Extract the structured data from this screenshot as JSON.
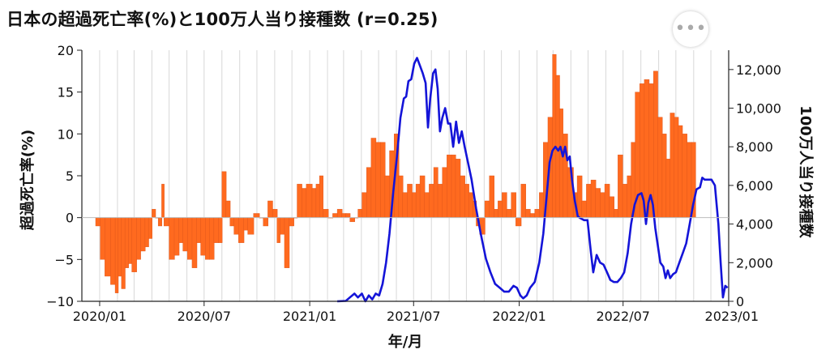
{
  "title": "日本の超過死亡率(%)と100万人当り接種数 (r=0.25)",
  "more_button": {
    "icon": "more-dots-icon",
    "glyph": "•••"
  },
  "chart_data": {
    "type": "bar+line",
    "title": "日本の超過死亡率(%)と100万人当り接種数 (r=0.25)",
    "xlabel": "年/月",
    "ylabel_left": "超過死亡率(%)",
    "ylabel_right": "100万人当り接種数",
    "x_ticks": [
      "2020/01",
      "2020/07",
      "2021/01",
      "2021/07",
      "2022/01",
      "2022/07",
      "2023/01"
    ],
    "x_range": [
      "2019/12",
      "2023/01"
    ],
    "ylim_left": [
      -10,
      20
    ],
    "yticks_left": [
      "−10",
      "−5",
      "0",
      "5",
      "10",
      "15",
      "20"
    ],
    "ylim_right": [
      0,
      13000
    ],
    "yticks_right": [
      "0",
      "2,000",
      "4,000",
      "6,000",
      "8,000",
      "10,000",
      "12,000"
    ],
    "grid": "vertical",
    "colors": {
      "excess": "#ff6a1f",
      "excess_stroke": "#d9531a",
      "vaccination": "#1414d8"
    },
    "series": [
      {
        "axis": "left",
        "kind": "bar",
        "points": [
          [
            "2019/12/25",
            -1
          ],
          [
            "2020/01/02",
            -5
          ],
          [
            "2020/01/10",
            -7
          ],
          [
            "2020/01/20",
            -8
          ],
          [
            "2020/01/28",
            -9
          ],
          [
            "2020/02/02",
            -7
          ],
          [
            "2020/02/08",
            -8.5
          ],
          [
            "2020/02/14",
            -6
          ],
          [
            "2020/02/20",
            -5.5
          ],
          [
            "2020/02/26",
            -6.5
          ],
          [
            "2020/03/05",
            -5
          ],
          [
            "2020/03/12",
            -4
          ],
          [
            "2020/03/20",
            -3.5
          ],
          [
            "2020/03/26",
            -2.5
          ],
          [
            "2020/04/01",
            1
          ],
          [
            "2020/04/07",
            0
          ],
          [
            "2020/04/12",
            -1
          ],
          [
            "2020/04/18",
            4
          ],
          [
            "2020/04/22",
            -1
          ],
          [
            "2020/05/01",
            -5
          ],
          [
            "2020/05/10",
            -4.5
          ],
          [
            "2020/05/18",
            -3
          ],
          [
            "2020/05/25",
            -4
          ],
          [
            "2020/06/02",
            -5
          ],
          [
            "2020/06/10",
            -6
          ],
          [
            "2020/06/18",
            -3
          ],
          [
            "2020/06/25",
            -4.5
          ],
          [
            "2020/07/03",
            -5
          ],
          [
            "2020/07/10",
            -5
          ],
          [
            "2020/07/18",
            -3
          ],
          [
            "2020/07/26",
            -3
          ],
          [
            "2020/08/01",
            5.5
          ],
          [
            "2020/08/08",
            2
          ],
          [
            "2020/08/15",
            -1
          ],
          [
            "2020/08/22",
            -2
          ],
          [
            "2020/08/30",
            -3
          ],
          [
            "2020/09/08",
            -1.5
          ],
          [
            "2020/09/15",
            -2
          ],
          [
            "2020/09/25",
            0.5
          ],
          [
            "2020/10/05",
            0
          ],
          [
            "2020/10/12",
            -1
          ],
          [
            "2020/10/20",
            2
          ],
          [
            "2020/10/28",
            1
          ],
          [
            "2020/11/05",
            -3
          ],
          [
            "2020/11/10",
            -2
          ],
          [
            "2020/11/18",
            -6
          ],
          [
            "2020/11/26",
            -1
          ],
          [
            "2020/12/04",
            0
          ],
          [
            "2020/12/10",
            4
          ],
          [
            "2020/12/18",
            3.5
          ],
          [
            "2020/12/26",
            4
          ],
          [
            "2021/01/05",
            3.5
          ],
          [
            "2021/01/12",
            4
          ],
          [
            "2021/01/18",
            5
          ],
          [
            "2021/01/24",
            1
          ],
          [
            "2021/02/02",
            0
          ],
          [
            "2021/02/10",
            0.5
          ],
          [
            "2021/02/18",
            1
          ],
          [
            "2021/02/26",
            0.5
          ],
          [
            "2021/03/05",
            0.5
          ],
          [
            "2021/03/12",
            -0.5
          ],
          [
            "2021/03/20",
            0
          ],
          [
            "2021/03/26",
            1
          ],
          [
            "2021/04/02",
            3
          ],
          [
            "2021/04/10",
            6
          ],
          [
            "2021/04/18",
            9.5
          ],
          [
            "2021/04/26",
            9
          ],
          [
            "2021/05/04",
            9
          ],
          [
            "2021/05/12",
            5
          ],
          [
            "2021/05/20",
            8
          ],
          [
            "2021/05/28",
            10
          ],
          [
            "2021/06/05",
            5
          ],
          [
            "2021/06/12",
            3
          ],
          [
            "2021/06/20",
            4
          ],
          [
            "2021/06/28",
            3
          ],
          [
            "2021/07/05",
            4
          ],
          [
            "2021/07/12",
            5
          ],
          [
            "2021/07/20",
            3
          ],
          [
            "2021/07/28",
            4
          ],
          [
            "2021/08/05",
            6
          ],
          [
            "2021/08/12",
            4
          ],
          [
            "2021/08/20",
            6
          ],
          [
            "2021/08/28",
            7.5
          ],
          [
            "2021/09/05",
            7.5
          ],
          [
            "2021/09/12",
            7
          ],
          [
            "2021/09/20",
            5
          ],
          [
            "2021/09/28",
            4
          ],
          [
            "2021/10/05",
            3
          ],
          [
            "2021/10/12",
            2
          ],
          [
            "2021/10/18",
            -1
          ],
          [
            "2021/10/24",
            -2
          ],
          [
            "2021/11/02",
            2
          ],
          [
            "2021/11/10",
            5
          ],
          [
            "2021/11/18",
            1
          ],
          [
            "2021/11/25",
            2
          ],
          [
            "2021/12/02",
            3
          ],
          [
            "2021/12/10",
            1
          ],
          [
            "2021/12/18",
            3
          ],
          [
            "2021/12/26",
            -1
          ],
          [
            "2022/01/04",
            4
          ],
          [
            "2022/01/12",
            1
          ],
          [
            "2022/01/20",
            0.5
          ],
          [
            "2022/01/28",
            1
          ],
          [
            "2022/02/05",
            3
          ],
          [
            "2022/02/12",
            9
          ],
          [
            "2022/02/20",
            12
          ],
          [
            "2022/02/28",
            19.5
          ],
          [
            "2022/03/06",
            17
          ],
          [
            "2022/03/12",
            13
          ],
          [
            "2022/03/18",
            10
          ],
          [
            "2022/03/26",
            6
          ],
          [
            "2022/04/05",
            3
          ],
          [
            "2022/04/12",
            5
          ],
          [
            "2022/04/20",
            2
          ],
          [
            "2022/04/28",
            4
          ],
          [
            "2022/05/06",
            4.5
          ],
          [
            "2022/05/14",
            3.5
          ],
          [
            "2022/05/22",
            3
          ],
          [
            "2022/05/30",
            4
          ],
          [
            "2022/06/07",
            2.5
          ],
          [
            "2022/06/15",
            1
          ],
          [
            "2022/06/22",
            7.5
          ],
          [
            "2022/06/30",
            4
          ],
          [
            "2022/07/08",
            5
          ],
          [
            "2022/07/15",
            9
          ],
          [
            "2022/07/22",
            15
          ],
          [
            "2022/07/30",
            16
          ],
          [
            "2022/08/07",
            16.5
          ],
          [
            "2022/08/15",
            16
          ],
          [
            "2022/08/23",
            17.5
          ],
          [
            "2022/08/30",
            12
          ],
          [
            "2022/09/07",
            10
          ],
          [
            "2022/09/14",
            7
          ],
          [
            "2022/09/21",
            12.5
          ],
          [
            "2022/09/28",
            12
          ],
          [
            "2022/10/05",
            11
          ],
          [
            "2022/10/12",
            10
          ],
          [
            "2022/10/20",
            9
          ],
          [
            "2022/10/28",
            9
          ]
        ]
      },
      {
        "axis": "right",
        "kind": "line",
        "points": [
          [
            "2021/02/18",
            0
          ],
          [
            "2021/03/05",
            20
          ],
          [
            "2021/03/12",
            200
          ],
          [
            "2021/03/20",
            400
          ],
          [
            "2021/03/26",
            200
          ],
          [
            "2021/04/02",
            400
          ],
          [
            "2021/04/08",
            0
          ],
          [
            "2021/04/14",
            300
          ],
          [
            "2021/04/20",
            100
          ],
          [
            "2021/04/26",
            400
          ],
          [
            "2021/05/02",
            300
          ],
          [
            "2021/05/08",
            900
          ],
          [
            "2021/05/14",
            2000
          ],
          [
            "2021/05/20",
            3500
          ],
          [
            "2021/05/26",
            5500
          ],
          [
            "2021/06/02",
            7500
          ],
          [
            "2021/06/08",
            9500
          ],
          [
            "2021/06/14",
            10500
          ],
          [
            "2021/06/18",
            10600
          ],
          [
            "2021/06/22",
            11400
          ],
          [
            "2021/06/27",
            11500
          ],
          [
            "2021/07/02",
            12300
          ],
          [
            "2021/07/07",
            12600
          ],
          [
            "2021/07/12",
            12200
          ],
          [
            "2021/07/17",
            11800
          ],
          [
            "2021/07/22",
            11300
          ],
          [
            "2021/07/26",
            9000
          ],
          [
            "2021/07/30",
            10500
          ],
          [
            "2021/08/04",
            11800
          ],
          [
            "2021/08/08",
            12000
          ],
          [
            "2021/08/12",
            11000
          ],
          [
            "2021/08/16",
            8800
          ],
          [
            "2021/08/20",
            9500
          ],
          [
            "2021/08/25",
            10000
          ],
          [
            "2021/08/30",
            9200
          ],
          [
            "2021/09/03",
            9200
          ],
          [
            "2021/09/08",
            8000
          ],
          [
            "2021/09/13",
            9300
          ],
          [
            "2021/09/18",
            8200
          ],
          [
            "2021/09/23",
            8800
          ],
          [
            "2021/09/28",
            8000
          ],
          [
            "2021/10/03",
            7300
          ],
          [
            "2021/10/10",
            6300
          ],
          [
            "2021/10/18",
            4800
          ],
          [
            "2021/10/26",
            3500
          ],
          [
            "2021/11/04",
            2200
          ],
          [
            "2021/11/12",
            1500
          ],
          [
            "2021/11/20",
            900
          ],
          [
            "2021/11/28",
            700
          ],
          [
            "2021/12/06",
            500
          ],
          [
            "2021/12/14",
            500
          ],
          [
            "2021/12/22",
            800
          ],
          [
            "2021/12/28",
            700
          ],
          [
            "2022/01/03",
            300
          ],
          [
            "2022/01/08",
            150
          ],
          [
            "2022/01/14",
            300
          ],
          [
            "2022/01/20",
            700
          ],
          [
            "2022/01/28",
            1000
          ],
          [
            "2022/02/05",
            2000
          ],
          [
            "2022/02/12",
            3500
          ],
          [
            "2022/02/18",
            5500
          ],
          [
            "2022/02/23",
            7200
          ],
          [
            "2022/02/28",
            7800
          ],
          [
            "2022/03/05",
            8000
          ],
          [
            "2022/03/10",
            7800
          ],
          [
            "2022/03/14",
            8000
          ],
          [
            "2022/03/18",
            7500
          ],
          [
            "2022/03/22",
            8000
          ],
          [
            "2022/03/26",
            7300
          ],
          [
            "2022/03/30",
            7500
          ],
          [
            "2022/04/03",
            6300
          ],
          [
            "2022/04/08",
            5200
          ],
          [
            "2022/04/13",
            4400
          ],
          [
            "2022/04/18",
            4300
          ],
          [
            "2022/04/24",
            4200
          ],
          [
            "2022/04/30",
            4200
          ],
          [
            "2022/05/06",
            2500
          ],
          [
            "2022/05/10",
            1500
          ],
          [
            "2022/05/16",
            2400
          ],
          [
            "2022/05/22",
            2000
          ],
          [
            "2022/05/28",
            1900
          ],
          [
            "2022/06/03",
            1500
          ],
          [
            "2022/06/09",
            1100
          ],
          [
            "2022/06/15",
            1000
          ],
          [
            "2022/06/21",
            1000
          ],
          [
            "2022/06/27",
            1200
          ],
          [
            "2022/07/03",
            1500
          ],
          [
            "2022/07/09",
            2500
          ],
          [
            "2022/07/15",
            4000
          ],
          [
            "2022/07/21",
            5000
          ],
          [
            "2022/07/27",
            5500
          ],
          [
            "2022/08/02",
            5600
          ],
          [
            "2022/08/06",
            5200
          ],
          [
            "2022/08/10",
            4000
          ],
          [
            "2022/08/14",
            5100
          ],
          [
            "2022/08/18",
            5500
          ],
          [
            "2022/08/22",
            5000
          ],
          [
            "2022/08/26",
            3800
          ],
          [
            "2022/08/30",
            3000
          ],
          [
            "2022/09/04",
            2000
          ],
          [
            "2022/09/09",
            1800
          ],
          [
            "2022/09/13",
            1200
          ],
          [
            "2022/09/17",
            1600
          ],
          [
            "2022/09/21",
            1200
          ],
          [
            "2022/09/26",
            1400
          ],
          [
            "2022/10/01",
            1500
          ],
          [
            "2022/10/07",
            2000
          ],
          [
            "2022/10/13",
            2500
          ],
          [
            "2022/10/19",
            3000
          ],
          [
            "2022/10/25",
            4000
          ],
          [
            "2022/10/31",
            5000
          ],
          [
            "2022/11/06",
            5800
          ],
          [
            "2022/11/12",
            5900
          ],
          [
            "2022/11/16",
            6400
          ],
          [
            "2022/11/20",
            6300
          ],
          [
            "2022/11/26",
            6300
          ],
          [
            "2022/12/02",
            6300
          ],
          [
            "2022/12/08",
            6000
          ],
          [
            "2022/12/14",
            4000
          ],
          [
            "2022/12/18",
            2000
          ],
          [
            "2022/12/22",
            200
          ],
          [
            "2022/12/26",
            800
          ],
          [
            "2022/12/30",
            700
          ]
        ]
      }
    ]
  }
}
